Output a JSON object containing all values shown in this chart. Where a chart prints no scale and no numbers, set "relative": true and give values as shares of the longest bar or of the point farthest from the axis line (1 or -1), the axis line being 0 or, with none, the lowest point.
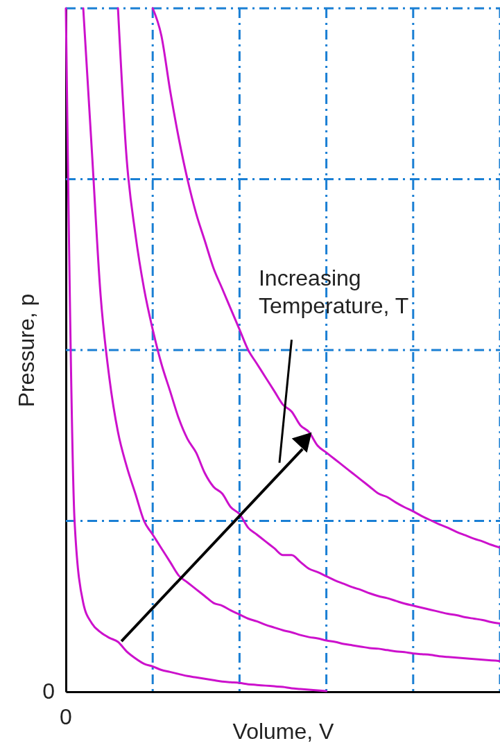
{
  "chart_data": {
    "type": "line",
    "relative": true,
    "xlabel": "Volume, V",
    "ylabel": "Pressure, p",
    "categories": [
      null,
      null,
      null,
      null,
      null,
      null,
      null,
      null,
      null,
      null,
      null,
      null,
      null,
      null,
      null,
      null,
      null,
      null,
      null,
      null,
      null,
      null,
      null,
      null,
      null,
      null,
      null,
      null,
      null,
      null,
      null,
      null,
      null,
      null,
      null,
      null,
      null,
      null,
      null,
      null,
      null,
      null,
      null,
      null,
      null,
      null,
      null,
      null,
      null,
      null,
      null
    ],
    "series": [
      {
        "color": "#cc11cc",
        "values": [
          1,
          0.25,
          0.13,
          0.1,
          0.087,
          0.079,
          0.073,
          0.059,
          0.049,
          0.041,
          0.037,
          0.032,
          0.029,
          0.026,
          0.023,
          0.021,
          0.019,
          0.017,
          0.015,
          0.014,
          0.013,
          0.011,
          0.01,
          0.009,
          0.008,
          0.007,
          0.005,
          0.004,
          0.003,
          0.002,
          0.001,
          null,
          null,
          null,
          null,
          null,
          null,
          null,
          null,
          null,
          null,
          null,
          null,
          null,
          null,
          null,
          null,
          null,
          null,
          null,
          null
        ]
      },
      {
        "color": "#cc11cc",
        "values": [
          null,
          null,
          1,
          0.79,
          0.58,
          0.46,
          0.38,
          0.33,
          0.29,
          0.25,
          0.23,
          0.21,
          0.19,
          0.17,
          0.16,
          0.15,
          0.14,
          0.13,
          0.126,
          0.119,
          0.113,
          0.107,
          0.103,
          0.098,
          0.094,
          0.09,
          0.087,
          0.083,
          0.08,
          0.078,
          0.075,
          0.073,
          0.07,
          0.068,
          0.066,
          0.064,
          0.063,
          0.061,
          0.059,
          0.058,
          0.056,
          0.055,
          0.054,
          0.052,
          0.051,
          0.05,
          0.049,
          0.048,
          0.047,
          0.046,
          0.045
        ]
      },
      {
        "color": "#cc11cc",
        "values": [
          null,
          null,
          null,
          null,
          null,
          null,
          1,
          0.78,
          0.67,
          0.59,
          0.53,
          0.48,
          0.44,
          0.4,
          0.37,
          0.35,
          0.32,
          0.3,
          0.29,
          0.27,
          0.26,
          0.24,
          0.23,
          0.22,
          0.21,
          0.2,
          0.2,
          0.19,
          0.18,
          0.175,
          0.169,
          0.163,
          0.158,
          0.153,
          0.149,
          0.144,
          0.14,
          0.137,
          0.133,
          0.129,
          0.126,
          0.123,
          0.12,
          0.117,
          0.114,
          0.112,
          0.109,
          0.107,
          0.105,
          0.102,
          0.1
        ]
      },
      {
        "color": "#cc11cc",
        "values": [
          null,
          null,
          null,
          null,
          null,
          null,
          null,
          null,
          null,
          null,
          1,
          0.96,
          0.88,
          0.81,
          0.75,
          0.7,
          0.66,
          0.62,
          0.59,
          0.56,
          0.53,
          0.5,
          0.48,
          0.46,
          0.44,
          0.42,
          0.41,
          0.39,
          0.38,
          0.36,
          0.35,
          0.34,
          0.33,
          0.32,
          0.31,
          0.3,
          0.29,
          0.285,
          0.277,
          0.27,
          0.264,
          0.257,
          0.251,
          0.245,
          0.24,
          0.234,
          0.229,
          0.224,
          0.22,
          0.215,
          0.211
        ]
      }
    ],
    "grid": true,
    "line_style": "solid",
    "annotations": [
      "0",
      "0",
      "Increasing Temperature, T"
    ]
  }
}
